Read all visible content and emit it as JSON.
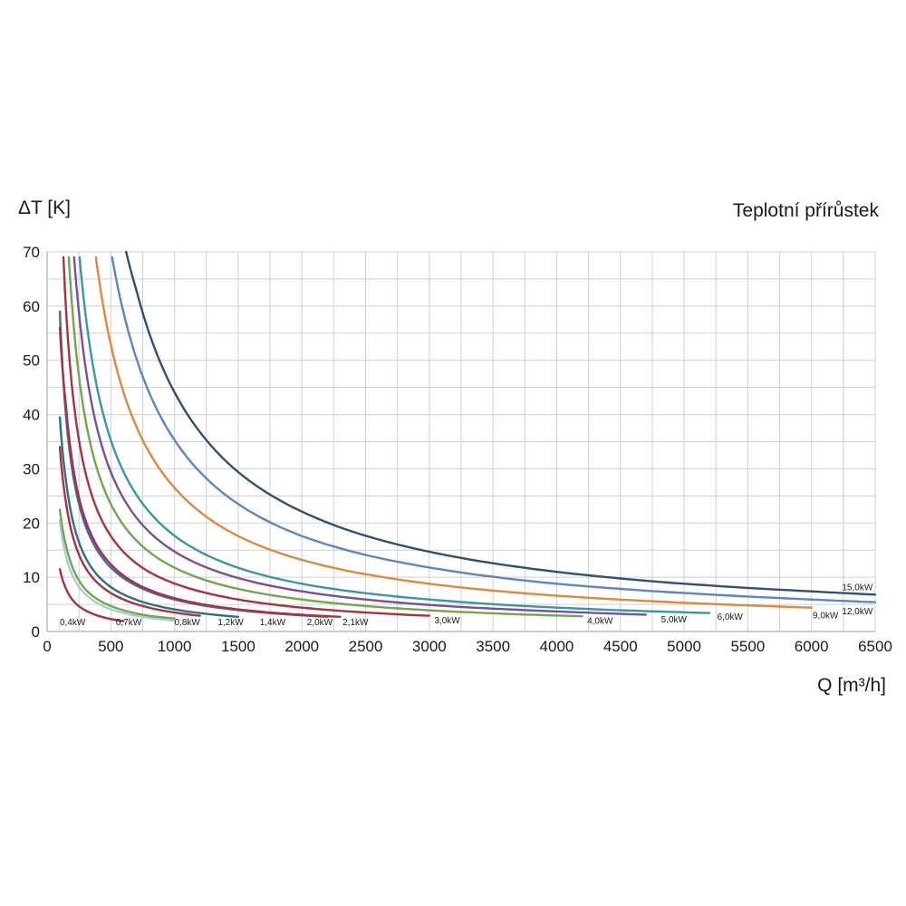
{
  "chart_data": {
    "type": "line",
    "title": "Teplotní přírůstek",
    "ylabel": "ΔT [K]",
    "xlabel": "Q [m³/h]",
    "xlim": [
      0,
      6500
    ],
    "ylim": [
      0,
      70
    ],
    "xticks": [
      "0",
      "500",
      "1000",
      "1500",
      "2000",
      "2500",
      "3000",
      "3500",
      "4000",
      "4500",
      "5000",
      "5500",
      "6000",
      "6500"
    ],
    "yticks": [
      "0",
      "10",
      "20",
      "30",
      "40",
      "50",
      "60",
      "70"
    ],
    "grid": true,
    "series": [
      {
        "name": "0,4kW",
        "color": "#a83240",
        "x": [
          100,
          150,
          200,
          300,
          400,
          500,
          600
        ],
        "y": [
          11.5,
          7.8,
          5.8,
          3.9,
          2.9,
          2.3,
          1.9
        ]
      },
      {
        "name": "0,7kW",
        "color": "#a9cdd3",
        "x": [
          100,
          150,
          200,
          300,
          500,
          700,
          1000
        ],
        "y": [
          20.5,
          13.7,
          10.3,
          6.9,
          4.1,
          2.9,
          2.0
        ]
      },
      {
        "name": "0,8kW",
        "color": "#6fa84a",
        "x": [
          100,
          150,
          200,
          300,
          500,
          800,
          1000
        ],
        "y": [
          22.5,
          15.7,
          11.8,
          7.8,
          4.7,
          2.9,
          2.4
        ]
      },
      {
        "name": "1,2kW",
        "color": "#a83240",
        "x": [
          100,
          150,
          200,
          300,
          500,
          800,
          1200
        ],
        "y": [
          34,
          23.5,
          17.7,
          11.8,
          7.1,
          4.4,
          2.9
        ]
      },
      {
        "name": "1,4kW",
        "color": "#2e6f86",
        "x": [
          100,
          150,
          200,
          300,
          500,
          800,
          1100,
          1500
        ],
        "y": [
          39.5,
          27.5,
          20.6,
          13.7,
          8.2,
          5.1,
          3.7,
          2.7
        ]
      },
      {
        "name": "2,0kW",
        "color": "#3e6ab0",
        "x": [
          100,
          150,
          200,
          300,
          500,
          800,
          1200,
          1600,
          2200
        ],
        "y": [
          59,
          39.2,
          29.4,
          19.6,
          11.8,
          7.4,
          4.9,
          3.7,
          2.7
        ]
      },
      {
        "name": "2,1kW",
        "color": "#a83240",
        "x": [
          100,
          150,
          200,
          300,
          500,
          800,
          1200,
          1700,
          2300
        ],
        "y": [
          56,
          41.2,
          30.9,
          20.6,
          12.4,
          7.7,
          5.1,
          3.6,
          2.7
        ]
      },
      {
        "name": "3,0kW",
        "color": "#a83240",
        "x": [
          128,
          150,
          200,
          300,
          500,
          800,
          1200,
          2000,
          3000
        ],
        "y": [
          69,
          58.8,
          44.1,
          29.4,
          17.6,
          11.0,
          7.4,
          4.4,
          2.9
        ]
      },
      {
        "name": "4,0kW",
        "color": "#6fa84a",
        "x": [
          170,
          200,
          300,
          500,
          800,
          1200,
          2000,
          3000,
          4200
        ],
        "y": [
          69,
          58.8,
          39.2,
          23.5,
          14.7,
          9.8,
          5.9,
          3.9,
          2.8
        ]
      },
      {
        "name": "5,0kW",
        "color": "#7a4f9a",
        "x": [
          212,
          250,
          300,
          500,
          800,
          1200,
          2000,
          3000,
          4000,
          4700
        ],
        "y": [
          69,
          58.8,
          49.0,
          29.4,
          18.4,
          12.3,
          7.4,
          4.9,
          3.7,
          3.1
        ]
      },
      {
        "name": "6,0kW",
        "color": "#3597a8",
        "x": [
          255,
          300,
          400,
          500,
          800,
          1200,
          2000,
          3000,
          4000,
          5200
        ],
        "y": [
          69,
          58.8,
          44.1,
          35.3,
          22.1,
          14.7,
          8.8,
          5.9,
          4.4,
          3.4
        ]
      },
      {
        "name": "9,0kW",
        "color": "#e0883a",
        "x": [
          383,
          450,
          600,
          800,
          1000,
          1500,
          2000,
          3000,
          4000,
          5000,
          6000
        ],
        "y": [
          69,
          58.8,
          44.1,
          33.1,
          26.5,
          17.6,
          13.2,
          8.8,
          6.6,
          5.3,
          4.4
        ]
      },
      {
        "name": "12,0kW",
        "color": "#5b85c8",
        "x": [
          510,
          600,
          800,
          1000,
          1500,
          2000,
          3000,
          4000,
          5000,
          6000,
          6500
        ],
        "y": [
          69,
          58.8,
          44.1,
          35.3,
          23.5,
          17.6,
          11.8,
          8.8,
          7.1,
          5.9,
          5.4
        ]
      },
      {
        "name": "15,0kW",
        "color": "#2f4f75",
        "x": [
          620,
          700,
          800,
          1000,
          1500,
          2000,
          3000,
          4000,
          5000,
          6000,
          6500
        ],
        "y": [
          70,
          63.0,
          55.1,
          44.1,
          29.4,
          22.1,
          14.7,
          11.0,
          8.8,
          7.4,
          6.8
        ]
      }
    ],
    "labels": [
      {
        "text": "0,4kW",
        "x": 200,
        "y": 1.2
      },
      {
        "text": "0,7kW",
        "x": 640,
        "y": 1.2
      },
      {
        "text": "0,8kW",
        "x": 1100,
        "y": 1.2
      },
      {
        "text": "1,2kW",
        "x": 1440,
        "y": 1.2
      },
      {
        "text": "1,4kW",
        "x": 1770,
        "y": 1.2
      },
      {
        "text": "2,0kW",
        "x": 2140,
        "y": 1.2
      },
      {
        "text": "2,1kW",
        "x": 2420,
        "y": 1.2
      },
      {
        "text": "3,0kW",
        "x": 3140,
        "y": 1.5
      },
      {
        "text": "4,0kW",
        "x": 4340,
        "y": 1.4
      },
      {
        "text": "5,0kW",
        "x": 4920,
        "y": 1.7
      },
      {
        "text": "6,0kW",
        "x": 5360,
        "y": 2.2
      },
      {
        "text": "9,0kW",
        "x": 6110,
        "y": 2.4
      },
      {
        "text": "12,0kW",
        "x": 6360,
        "y": 3.2
      },
      {
        "text": "15,0kW",
        "x": 6360,
        "y": 7.6
      }
    ]
  }
}
